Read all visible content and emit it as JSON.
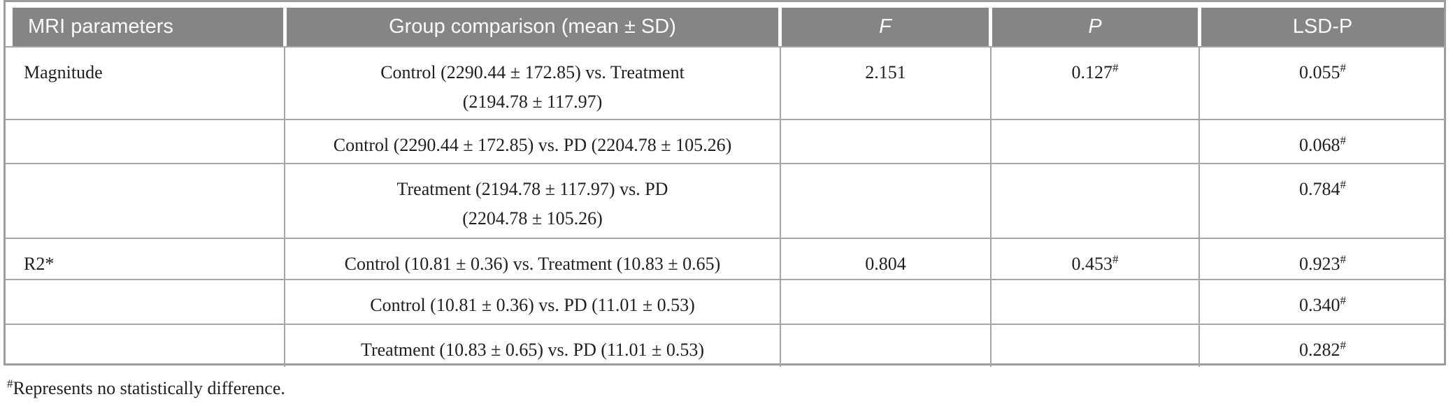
{
  "colors": {
    "header_bg": "#858585",
    "header_text": "#fafafa",
    "border": "#a5a5a5",
    "frame": "#9c9c9c",
    "body_text": "#1f1f1f"
  },
  "table": {
    "columns": [
      {
        "label": "MRI parameters"
      },
      {
        "label": "Group comparison (mean ± SD)"
      },
      {
        "label": "F"
      },
      {
        "label": "P"
      },
      {
        "label": "LSD-P"
      }
    ],
    "rows": [
      {
        "param": "Magnitude",
        "comparison_line1": "Control (2290.44 ± 172.85) vs. Treatment",
        "comparison_line2": "(2194.78 ± 117.97)",
        "f": "2.151",
        "p": "0.127",
        "p_sup": "#",
        "lsd": "0.055",
        "lsd_sup": "#"
      },
      {
        "param": "",
        "comparison_line1": "Control (2290.44 ± 172.85) vs. PD (2204.78 ± 105.26)",
        "comparison_line2": "",
        "f": "",
        "p": "",
        "p_sup": "",
        "lsd": "0.068",
        "lsd_sup": "#"
      },
      {
        "param": "",
        "comparison_line1": "Treatment (2194.78 ± 117.97) vs. PD",
        "comparison_line2": "(2204.78 ± 105.26)",
        "f": "",
        "p": "",
        "p_sup": "",
        "lsd": "0.784",
        "lsd_sup": "#"
      },
      {
        "param": "R2*",
        "comparison_line1": "Control (10.81 ± 0.36) vs. Treatment (10.83 ± 0.65)",
        "comparison_line2": "",
        "f": "0.804",
        "p": "0.453",
        "p_sup": "#",
        "lsd": "0.923",
        "lsd_sup": "#"
      },
      {
        "param": "",
        "comparison_line1": "Control (10.81 ± 0.36) vs. PD (11.01 ± 0.53)",
        "comparison_line2": "",
        "f": "",
        "p": "",
        "p_sup": "",
        "lsd": "0.340",
        "lsd_sup": "#"
      },
      {
        "param": "",
        "comparison_line1": "Treatment (10.83 ± 0.65) vs. PD (11.01 ± 0.53)",
        "comparison_line2": "",
        "f": "",
        "p": "",
        "p_sup": "",
        "lsd": "0.282",
        "lsd_sup": "#"
      }
    ],
    "footnote": {
      "sup": "#",
      "text": "Represents no statistically difference."
    }
  }
}
